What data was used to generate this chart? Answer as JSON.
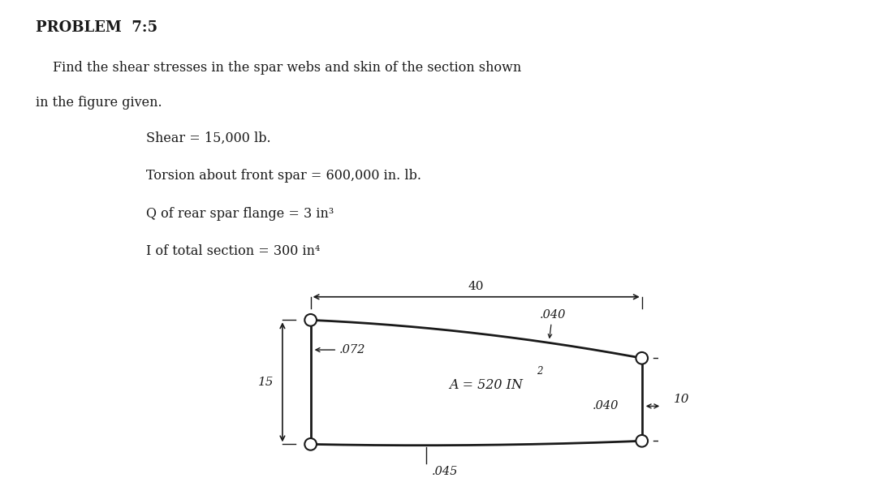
{
  "title": "PROBLEM  7:5",
  "line1": "Find the shear stresses in the spar webs and skin of the section shown",
  "line2": "in the figure given.",
  "bullet1": "Shear = 15,000 lb.",
  "bullet2": "Torsion about front spar = 600,000 in. lb.",
  "bullet3": "Q of rear spar flange = 3 in³",
  "bullet4": "I of total section = 300 in⁴",
  "dim_40": "40",
  "dim_15": "15",
  "dim_10": "10",
  "label_072": ".072",
  "label_040_top": ".040",
  "label_040_bot": ".040",
  "label_045": ".045",
  "label_area": "A = 520 IN",
  "bg_color": "#ffffff",
  "fg_color": "#1a1a1a",
  "fig_width": 10.89,
  "fig_height": 6.21
}
